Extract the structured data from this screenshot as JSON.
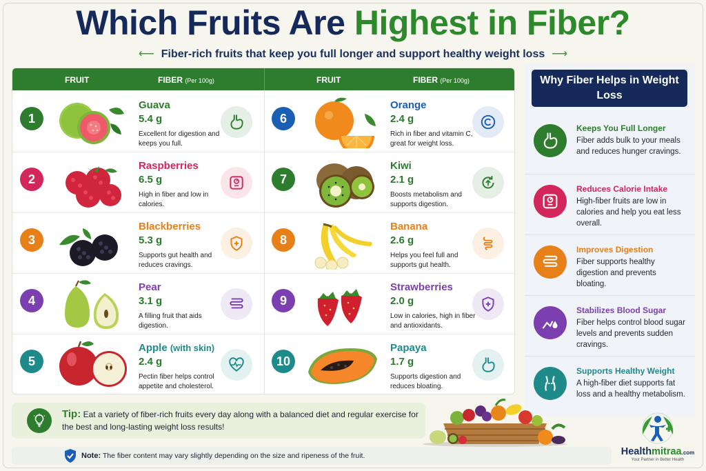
{
  "header": {
    "title_part1": "Which Fruits Are",
    "title_part2": "Highest in Fiber?",
    "subtitle": "Fiber-rich fruits that keep you full longer and support healthy weight loss",
    "arrow_left": "⟵",
    "arrow_right": "⟶"
  },
  "table": {
    "col_fruit": "FRUIT",
    "col_fiber": "FIBER",
    "col_unit": "(Per 100g)"
  },
  "fruits": [
    {
      "num": "1",
      "name": "Guava",
      "fiber": "5.4 g",
      "desc": "Excellent for digestion and keeps you full.",
      "color": "#2e7d2f",
      "icon": "stomach-icon"
    },
    {
      "num": "2",
      "name": "Raspberries",
      "fiber": "6.5 g",
      "desc": "High in fiber and low in calories.",
      "color": "#d3265a",
      "icon": "scale-icon"
    },
    {
      "num": "3",
      "name": "Blackberries",
      "fiber": "5.3 g",
      "desc": "Supports gut health and reduces cravings.",
      "color": "#e8801a",
      "icon": "shield-plus-icon"
    },
    {
      "num": "4",
      "name": "Pear",
      "fiber": "3.1 g",
      "desc": "A filling fruit that aids digestion.",
      "color": "#7b3fb0",
      "icon": "intestine-icon"
    },
    {
      "num": "5",
      "name": "Apple",
      "name_extra": "(with skin)",
      "fiber": "2.4 g",
      "desc": "Pectin fiber helps control appetite and cholesterol.",
      "color": "#1f8a8a",
      "icon": "heart-pulse-icon"
    },
    {
      "num": "6",
      "name": "Orange",
      "fiber": "2.4 g",
      "desc": "Rich in fiber and vitamin C, great for weight loss.",
      "color": "#1b5fb5",
      "icon": "vitamin-c-icon"
    },
    {
      "num": "7",
      "name": "Kiwi",
      "fiber": "2.1 g",
      "desc": "Boosts metabolism and supports digestion.",
      "color": "#2e7d2f",
      "icon": "metabolism-icon"
    },
    {
      "num": "8",
      "name": "Banana",
      "fiber": "2.6 g",
      "desc": "Helps you feel full and supports gut health.",
      "color": "#e8801a",
      "icon": "gut-icon"
    },
    {
      "num": "9",
      "name": "Strawberries",
      "fiber": "2.0 g",
      "desc": "Low in calories, high in fiber and antioxidants.",
      "color": "#7b3fb0",
      "icon": "shield-plus-icon"
    },
    {
      "num": "10",
      "name": "Papaya",
      "fiber": "1.7 g",
      "desc": "Supports digestion and reduces bloating.",
      "color": "#1f8a8a",
      "icon": "stomach-icon"
    }
  ],
  "sidebar": {
    "heading": "Why Fiber Helps in Weight Loss",
    "items": [
      {
        "title": "Keeps You Full Longer",
        "text": "Fiber adds bulk to your meals and reduces hunger cravings.",
        "color": "#2e7d2f",
        "icon": "stomach-icon"
      },
      {
        "title": "Reduces Calorie Intake",
        "text": "High-fiber fruits are low in calories and help you eat less overall.",
        "color": "#d3265a",
        "icon": "scale-icon"
      },
      {
        "title": "Improves Digestion",
        "text": "Fiber supports healthy digestion and prevents bloating.",
        "color": "#e8801a",
        "icon": "intestine-icon"
      },
      {
        "title": "Stabilizes Blood Sugar",
        "text": "Fiber helps control blood sugar levels and prevents sudden cravings.",
        "color": "#7b3fb0",
        "icon": "blood-sugar-icon"
      },
      {
        "title": "Supports Healthy Weight",
        "text": "A high-fiber diet supports fat loss and a healthy metabolism.",
        "color": "#1f8a8a",
        "icon": "waist-icon"
      }
    ]
  },
  "tip": {
    "label": "Tip:",
    "text": "Eat a variety of fiber-rich fruits every day along with a balanced diet and regular exercise for the best and long-lasting weight loss results!"
  },
  "note": {
    "label": "Note:",
    "text": "The fiber content may vary slightly depending on the size and ripeness of the fruit."
  },
  "brand": {
    "name_part1": "Health",
    "name_part2": "mitraa",
    "domain": ".com",
    "tagline": "Your Partner in Better Health"
  }
}
